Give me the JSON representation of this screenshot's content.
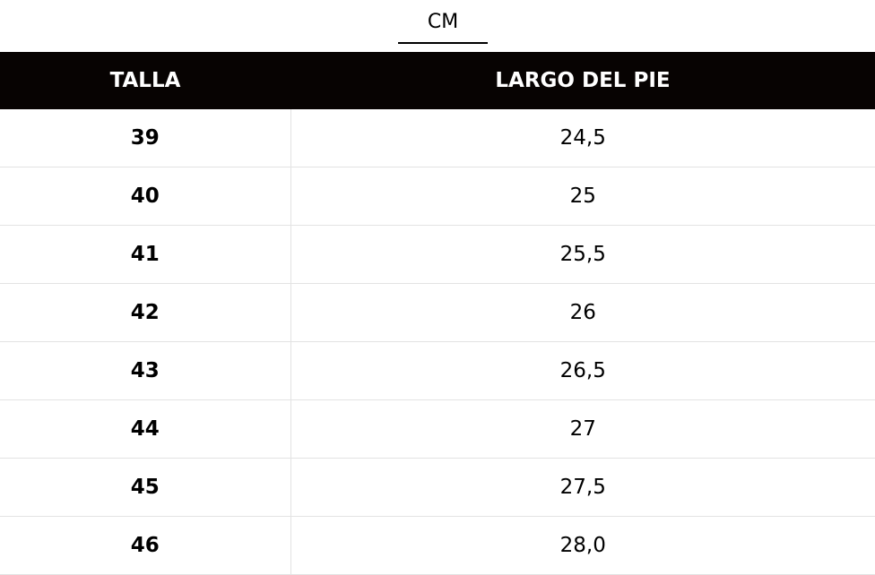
{
  "tabs": [
    {
      "label": "CM",
      "active": true
    }
  ],
  "table": {
    "headers": [
      "TALLA",
      "LARGO DEL PIE"
    ],
    "rows": [
      {
        "size": "39",
        "length": "24,5"
      },
      {
        "size": "40",
        "length": "25"
      },
      {
        "size": "41",
        "length": "25,5"
      },
      {
        "size": "42",
        "length": "26"
      },
      {
        "size": "43",
        "length": "26,5"
      },
      {
        "size": "44",
        "length": "27"
      },
      {
        "size": "45",
        "length": "27,5"
      },
      {
        "size": "46",
        "length": "28,0"
      }
    ]
  },
  "colors": {
    "header_bg": "#070302",
    "header_text": "#ffffff",
    "divider": "#e3e3e3"
  }
}
